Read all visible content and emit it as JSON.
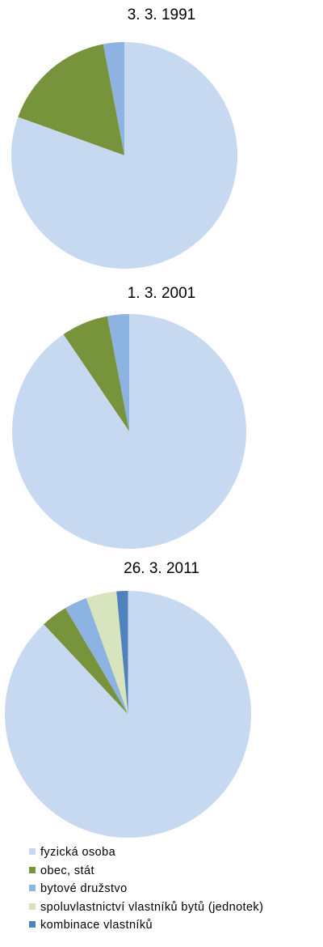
{
  "chart_data": [
    {
      "type": "pie",
      "title": "3. 3. 1991",
      "categories": [
        "fyzická osoba",
        "obec, stát",
        "bytové družstvo",
        "spoluvlastnictví vlastníků bytů (jednotek)",
        "kombinace vlastníků"
      ],
      "values": [
        80.5,
        16.5,
        3.0,
        0,
        0
      ]
    },
    {
      "type": "pie",
      "title": "1. 3. 2001",
      "categories": [
        "fyzická osoba",
        "obec, stát",
        "bytové družstvo",
        "spoluvlastnictví vlastníků bytů (jednotek)",
        "kombinace vlastníků"
      ],
      "values": [
        90.5,
        6.5,
        3.0,
        0,
        0
      ]
    },
    {
      "type": "pie",
      "title": "26. 3. 2011",
      "categories": [
        "fyzická osoba",
        "obec, stát",
        "bytové družstvo",
        "spoluvlastnictví vlastníků bytů (jednotek)",
        "kombinace vlastníků"
      ],
      "values": [
        88.0,
        3.5,
        3.0,
        4.0,
        1.5
      ]
    }
  ],
  "legend": {
    "items": [
      {
        "label": "fyzická osoba",
        "color": "#c6d9f1"
      },
      {
        "label": "obec, stát",
        "color": "#77933c"
      },
      {
        "label": "bytové družstvo",
        "color": "#8db3e2"
      },
      {
        "label": "spoluvlastnictví vlastníků bytů (jednotek)",
        "color": "#d7e4bd"
      },
      {
        "label": "kombinace vlastníků",
        "color": "#4f81bd"
      }
    ]
  }
}
